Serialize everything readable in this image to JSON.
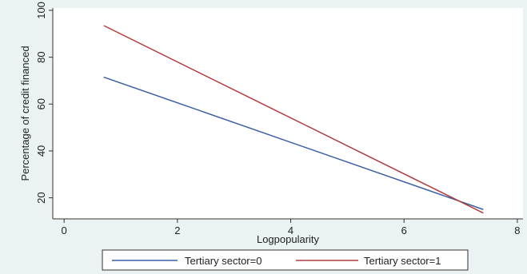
{
  "chart_data": {
    "type": "line",
    "xlabel": "Logpopularity",
    "ylabel": "Percentage of credit financed",
    "xlim": [
      -0.2,
      8.1
    ],
    "ylim": [
      11,
      101
    ],
    "xticks": [
      0,
      2,
      4,
      6,
      8
    ],
    "yticks": [
      20,
      40,
      60,
      80,
      100
    ],
    "grid": false,
    "legend_position": "bottom",
    "series": [
      {
        "name": "Tertiary sector=0",
        "color": "#3a5fa4",
        "x": [
          0.7,
          7.4
        ],
        "y": [
          71.5,
          15.0
        ]
      },
      {
        "name": "Tertiary sector=1",
        "color": "#b23b3b",
        "x": [
          0.7,
          7.4
        ],
        "y": [
          93.5,
          13.5
        ]
      }
    ]
  }
}
